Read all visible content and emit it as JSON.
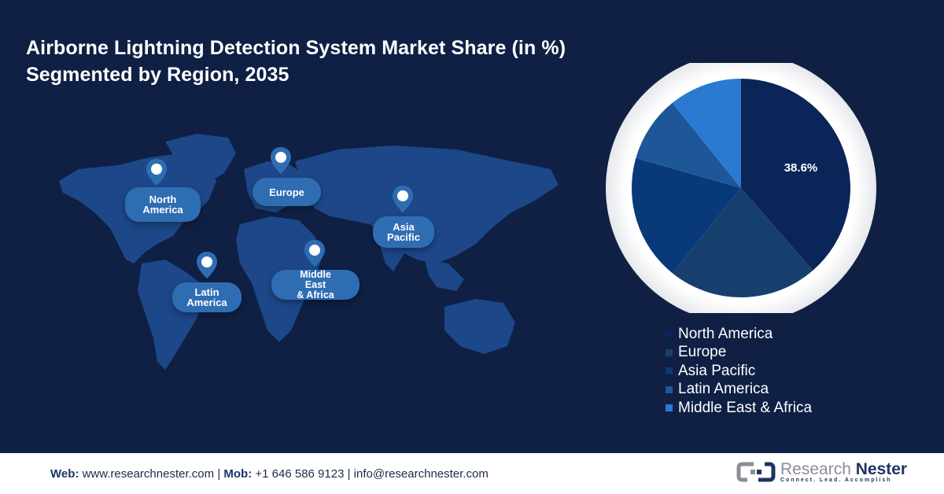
{
  "header": {
    "title_line1": "Airborne Lightning Detection System Market Share (in %)",
    "title_line2": "Segmented by Region, 2035"
  },
  "map": {
    "markers": [
      {
        "label_lines": [
          "North",
          "America"
        ]
      },
      {
        "label_lines": [
          "Europe"
        ]
      },
      {
        "label_lines": [
          "Asia",
          "Pacific"
        ]
      },
      {
        "label_lines": [
          "Latin",
          "America"
        ]
      },
      {
        "label_lines": [
          "Middle",
          "East",
          "& Africa"
        ]
      }
    ],
    "colors": {
      "background": "#0f2044",
      "land": "#1e4a8c",
      "marker": "#2f6db3"
    }
  },
  "pie": {
    "highlight_label": "38.6%"
  },
  "legend": {
    "items": [
      {
        "label": "North America",
        "color": "#0b2558"
      },
      {
        "label": "Europe",
        "color": "#163f6e"
      },
      {
        "label": "Asia Pacific",
        "color": "#083a7a"
      },
      {
        "label": "Latin America",
        "color": "#1e5797"
      },
      {
        "label": "Middle East & Africa",
        "color": "#2a7ad4"
      }
    ]
  },
  "chart_data": {
    "type": "pie",
    "title": "Airborne Lightning Detection System Market Share (in %) Segmented by Region, 2035",
    "categories": [
      "North America",
      "Europe",
      "Asia Pacific",
      "Latin America",
      "Middle East & Africa"
    ],
    "values": [
      38.6,
      22.2,
      18.6,
      9.8,
      10.8
    ],
    "colors": [
      "#0b2558",
      "#163f6e",
      "#083a7a",
      "#1e5797",
      "#2a7ad4"
    ],
    "data_labels": {
      "North America": "38.6%"
    },
    "legend_position": "bottom-right",
    "start_angle_deg": 0,
    "direction": "clockwise"
  },
  "footer": {
    "web_label": "Web:",
    "web_value": "www.researchnester.com",
    "sep1": "|",
    "mob_label": "Mob:",
    "mob_value": "+1 646 586 9123",
    "sep2": "|",
    "email": "info@researchnester.com",
    "logo_word1": "Research",
    "logo_word2": "Nester",
    "logo_tagline": "Connect. Lead. Accomplish"
  }
}
